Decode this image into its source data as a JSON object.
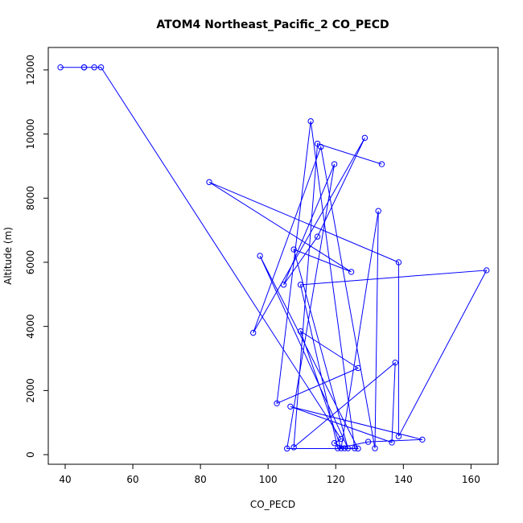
{
  "chart_data": {
    "type": "line",
    "title": "ATOM4 Northeast_Pacific_2 CO_PECD",
    "xlabel": "CO_PECD",
    "ylabel": "Altitude (m)",
    "xlim": [
      35,
      168
    ],
    "ylim": [
      -300,
      12700
    ],
    "xticks": [
      40,
      60,
      80,
      100,
      120,
      140,
      160
    ],
    "yticks": [
      0,
      2000,
      4000,
      6000,
      8000,
      10000,
      12000
    ],
    "series": [
      {
        "color": "#0000ff",
        "marker": "open-circle",
        "points": [
          {
            "x": 38.6,
            "y": 12080
          },
          {
            "x": 45.6,
            "y": 12080
          },
          {
            "x": 45.6,
            "y": 12080
          },
          {
            "x": 48.6,
            "y": 12080
          },
          {
            "x": 50.6,
            "y": 12080
          },
          {
            "x": 121.6,
            "y": 490
          },
          {
            "x": 119.6,
            "y": 360
          },
          {
            "x": 122.6,
            "y": 200
          },
          {
            "x": 125.6,
            "y": 200
          },
          {
            "x": 112.6,
            "y": 10400
          },
          {
            "x": 102.6,
            "y": 1600
          },
          {
            "x": 126.6,
            "y": 2700
          },
          {
            "x": 109.6,
            "y": 3850
          },
          {
            "x": 121.6,
            "y": 200
          },
          {
            "x": 132.6,
            "y": 7600
          },
          {
            "x": 131.6,
            "y": 200
          },
          {
            "x": 115.6,
            "y": 9600
          },
          {
            "x": 95.6,
            "y": 3800
          },
          {
            "x": 128.6,
            "y": 9880
          },
          {
            "x": 114.6,
            "y": 6800
          },
          {
            "x": 104.6,
            "y": 5300
          },
          {
            "x": 119.6,
            "y": 9060
          },
          {
            "x": 105.6,
            "y": 190
          },
          {
            "x": 126.6,
            "y": 190
          },
          {
            "x": 97.6,
            "y": 6200
          },
          {
            "x": 123.6,
            "y": 200
          },
          {
            "x": 107.6,
            "y": 6400
          },
          {
            "x": 124.6,
            "y": 5700
          },
          {
            "x": 82.6,
            "y": 8500
          },
          {
            "x": 138.6,
            "y": 6000
          },
          {
            "x": 138.6,
            "y": 570
          },
          {
            "x": 164.6,
            "y": 5750
          },
          {
            "x": 109.6,
            "y": 5300
          },
          {
            "x": 120.6,
            "y": 200
          },
          {
            "x": 129.6,
            "y": 400
          },
          {
            "x": 145.6,
            "y": 470
          },
          {
            "x": 106.6,
            "y": 1500
          },
          {
            "x": 136.6,
            "y": 380
          },
          {
            "x": 137.6,
            "y": 2870
          },
          {
            "x": 107.6,
            "y": 230
          },
          {
            "x": 114.6,
            "y": 9700
          },
          {
            "x": 133.6,
            "y": 9060
          }
        ]
      }
    ]
  }
}
